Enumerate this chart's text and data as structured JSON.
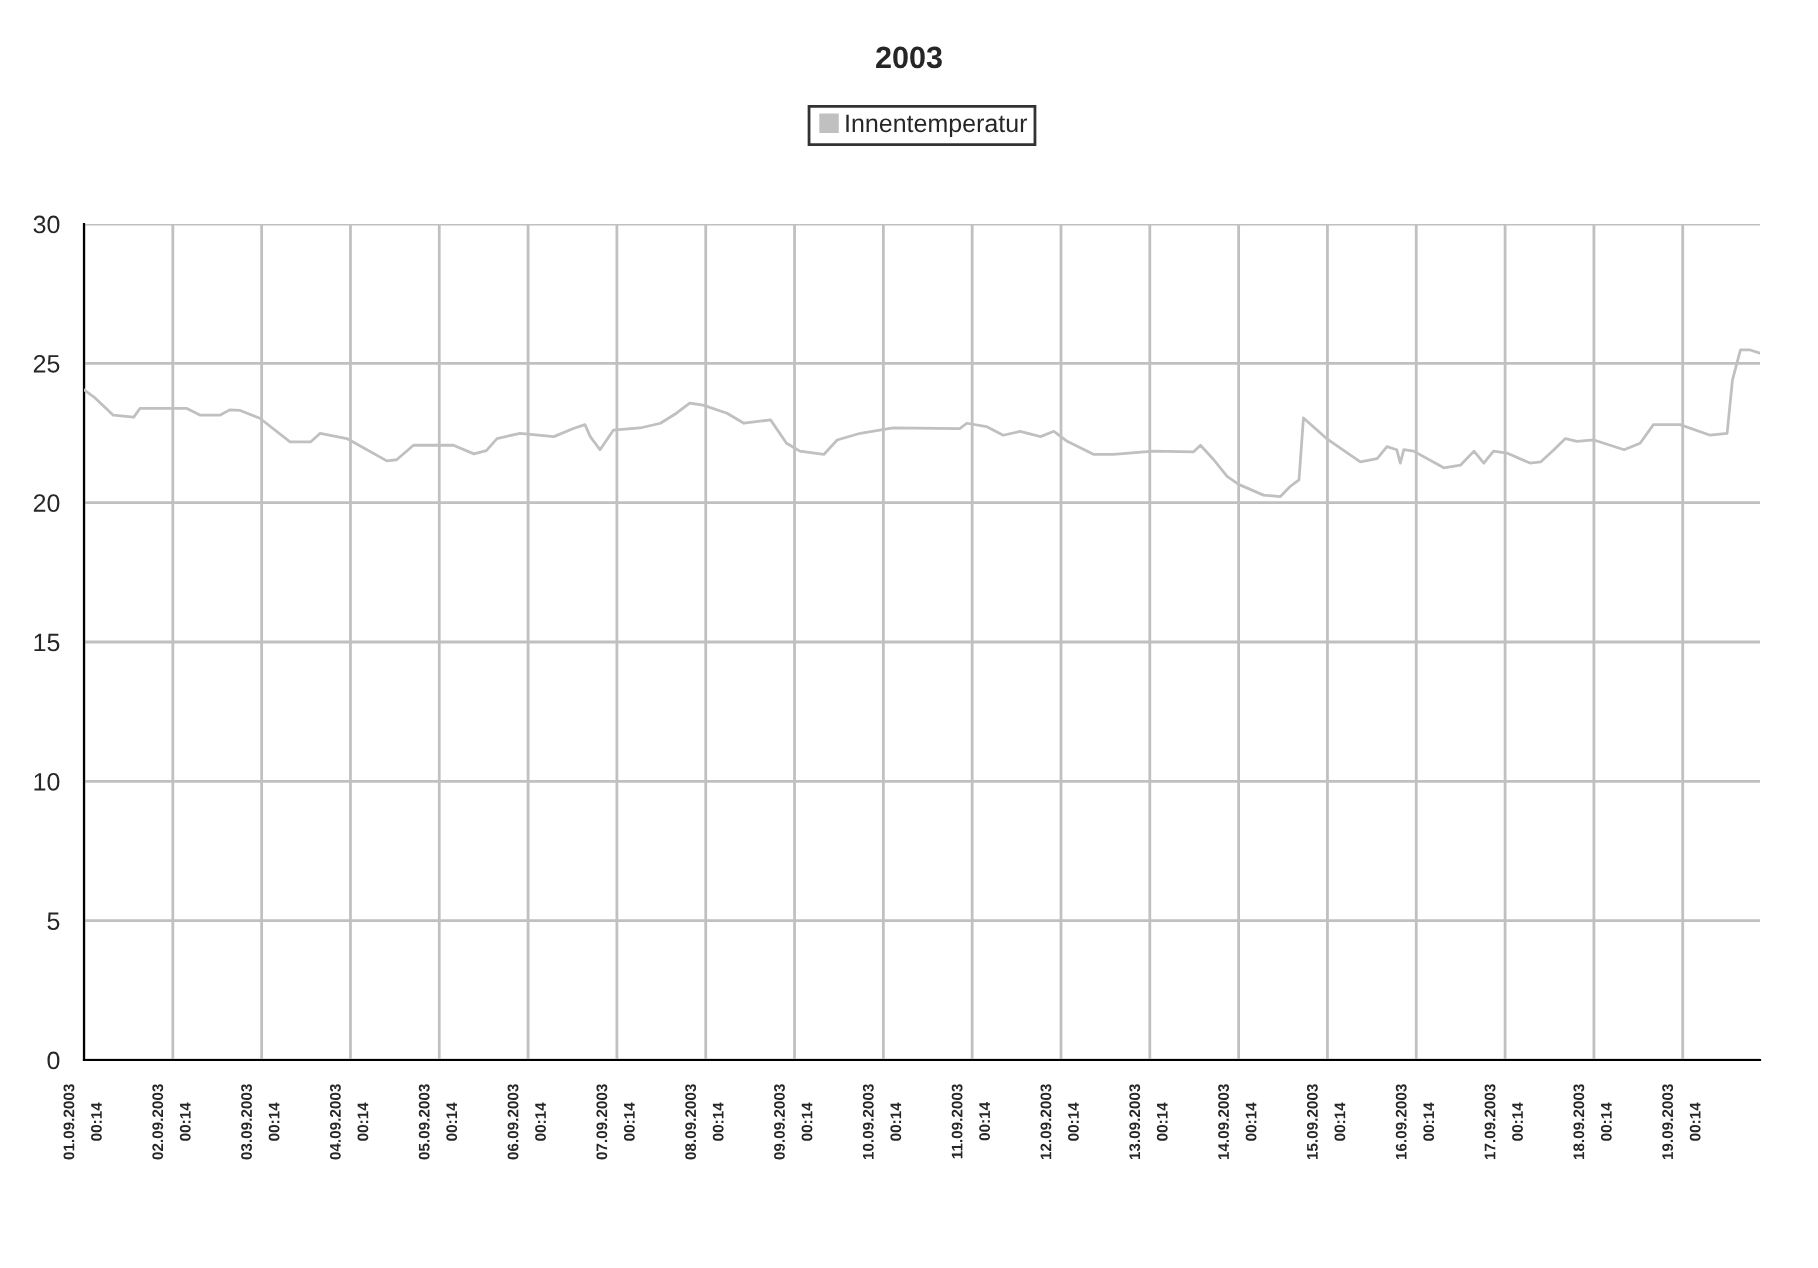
{
  "chart_data": {
    "type": "line",
    "title": "2003",
    "x": [
      "2003-09-01T00:14",
      "2003-09-01T02:52",
      "2003-09-01T08:09",
      "2003-09-01T13:40",
      "2003-09-01T15:21",
      "2003-09-02T04:04",
      "2003-09-02T07:40",
      "2003-09-02T12:57",
      "2003-09-02T15:36",
      "2003-09-02T18:28",
      "2003-09-02T23:45",
      "2003-09-03T07:55",
      "2003-09-03T13:26",
      "2003-09-03T16:04",
      "2003-09-03T23:16",
      "2003-09-04T10:04",
      "2003-09-04T12:43",
      "2003-09-04T17:16",
      "2003-09-05T04:04",
      "2003-09-05T09:36",
      "2003-09-05T12:57",
      "2003-09-05T15:50",
      "2003-09-05T22:04",
      "2003-09-06T07:12",
      "2003-09-06T12:28",
      "2003-09-06T15:36",
      "2003-09-06T17:02",
      "2003-09-06T19:40",
      "2003-09-06T23:16",
      "2003-09-07T06:28",
      "2003-09-07T12:00",
      "2003-09-07T16:19",
      "2003-09-07T19:55",
      "2003-09-07T23:31",
      "2003-09-08T06:00",
      "2003-09-08T10:33",
      "2003-09-08T17:45",
      "2003-09-08T22:04",
      "2003-09-09T01:40",
      "2003-09-09T08:09",
      "2003-09-09T11:45",
      "2003-09-09T18:00",
      "2003-09-10T02:52",
      "2003-09-10T20:52",
      "2003-09-10T22:48",
      "2003-09-11T04:04",
      "2003-09-11T08:38",
      "2003-09-11T13:12",
      "2003-09-11T18:43",
      "2003-09-11T22:19",
      "2003-09-12T01:55",
      "2003-09-12T09:07",
      "2003-09-12T14:24",
      "2003-09-13T01:12",
      "2003-09-13T12:00",
      "2003-09-13T13:55",
      "2003-09-13T17:31",
      "2003-09-13T21:07",
      "2003-09-13T23:45",
      "2003-09-14T00:43",
      "2003-09-14T06:57",
      "2003-09-14T11:31",
      "2003-09-14T14:09",
      "2003-09-14T16:33",
      "2003-09-14T17:45",
      "2003-09-15T00:00",
      "2003-09-15T09:07",
      "2003-09-15T13:40",
      "2003-09-15T16:19",
      "2003-09-15T18:57",
      "2003-09-15T19:55",
      "2003-09-15T20:52",
      "2003-09-15T23:31",
      "2003-09-16T07:40",
      "2003-09-16T12:14",
      "2003-09-16T15:50",
      "2003-09-16T18:28",
      "2003-09-16T21:07",
      "2003-09-17T00:43",
      "2003-09-17T06:57",
      "2003-09-17T09:50",
      "2003-09-17T13:26",
      "2003-09-17T16:33",
      "2003-09-17T19:40",
      "2003-09-18T00:14",
      "2003-09-18T08:24",
      "2003-09-18T12:43",
      "2003-09-18T16:19",
      "2003-09-18T23:31",
      "2003-09-19T07:40",
      "2003-09-19T12:14",
      "2003-09-19T13:40",
      "2003-09-19T15:50",
      "2003-09-19T18:28",
      "2003-09-19T21:07"
    ],
    "series": [
      {
        "name": "Innentemperatur",
        "color": "#c0c0c0",
        "values": [
          24.05,
          23.8,
          23.14,
          23.07,
          23.38,
          23.38,
          23.14,
          23.14,
          23.33,
          23.31,
          23.03,
          22.18,
          22.18,
          22.49,
          22.3,
          21.5,
          21.54,
          22.06,
          22.06,
          21.75,
          21.87,
          22.3,
          22.49,
          22.37,
          22.66,
          22.8,
          22.37,
          21.9,
          22.6,
          22.68,
          22.85,
          23.21,
          23.57,
          23.5,
          23.21,
          22.85,
          22.97,
          22.13,
          21.85,
          21.73,
          22.25,
          22.49,
          22.68,
          22.66,
          22.85,
          22.73,
          22.42,
          22.56,
          22.37,
          22.56,
          22.2,
          21.73,
          21.73,
          21.85,
          21.82,
          22.06,
          21.54,
          20.94,
          20.7,
          20.63,
          20.27,
          20.22,
          20.58,
          20.82,
          23.04,
          22.3,
          21.46,
          21.58,
          22.01,
          21.9,
          21.42,
          21.9,
          21.85,
          21.25,
          21.35,
          21.85,
          21.42,
          21.85,
          21.78,
          21.42,
          21.46,
          21.9,
          22.3,
          22.2,
          22.25,
          21.9,
          22.13,
          22.8,
          22.8,
          22.42,
          22.49,
          24.4,
          25.48,
          25.48,
          25.36
        ]
      }
    ],
    "xlim": [
      "2003-09-01T00:14",
      "2003-09-19T21:07"
    ],
    "xticks": [
      {
        "value": "2003-09-01T00:14",
        "label": "01.09.2003\n00:14"
      },
      {
        "value": "2003-09-02T00:14",
        "label": "02.09.2003\n00:14"
      },
      {
        "value": "2003-09-03T00:14",
        "label": "03.09.2003\n00:14"
      },
      {
        "value": "2003-09-04T00:14",
        "label": "04.09.2003\n00:14"
      },
      {
        "value": "2003-09-05T00:14",
        "label": "05.09.2003\n00:14"
      },
      {
        "value": "2003-09-06T00:14",
        "label": "06.09.2003\n00:14"
      },
      {
        "value": "2003-09-07T00:14",
        "label": "07.09.2003\n00:14"
      },
      {
        "value": "2003-09-08T00:14",
        "label": "08.09.2003\n00:14"
      },
      {
        "value": "2003-09-09T00:14",
        "label": "09.09.2003\n00:14"
      },
      {
        "value": "2003-09-10T00:14",
        "label": "10.09.2003\n00:14"
      },
      {
        "value": "2003-09-11T00:14",
        "label": "11.09.2003\n00:14"
      },
      {
        "value": "2003-09-12T00:14",
        "label": "12.09.2003\n00:14"
      },
      {
        "value": "2003-09-13T00:14",
        "label": "13.09.2003\n00:14"
      },
      {
        "value": "2003-09-14T00:14",
        "label": "14.09.2003\n00:14"
      },
      {
        "value": "2003-09-15T00:14",
        "label": "15.09.2003\n00:14"
      },
      {
        "value": "2003-09-16T00:14",
        "label": "16.09.2003\n00:14"
      },
      {
        "value": "2003-09-17T00:14",
        "label": "17.09.2003\n00:14"
      },
      {
        "value": "2003-09-18T00:14",
        "label": "18.09.2003\n00:14"
      },
      {
        "value": "2003-09-19T00:14",
        "label": "19.09.2003\n00:14"
      }
    ],
    "ylim": [
      0,
      30
    ],
    "yticks": [
      0,
      5,
      10,
      15,
      20,
      25,
      30
    ],
    "grid": true,
    "legend": "top"
  }
}
